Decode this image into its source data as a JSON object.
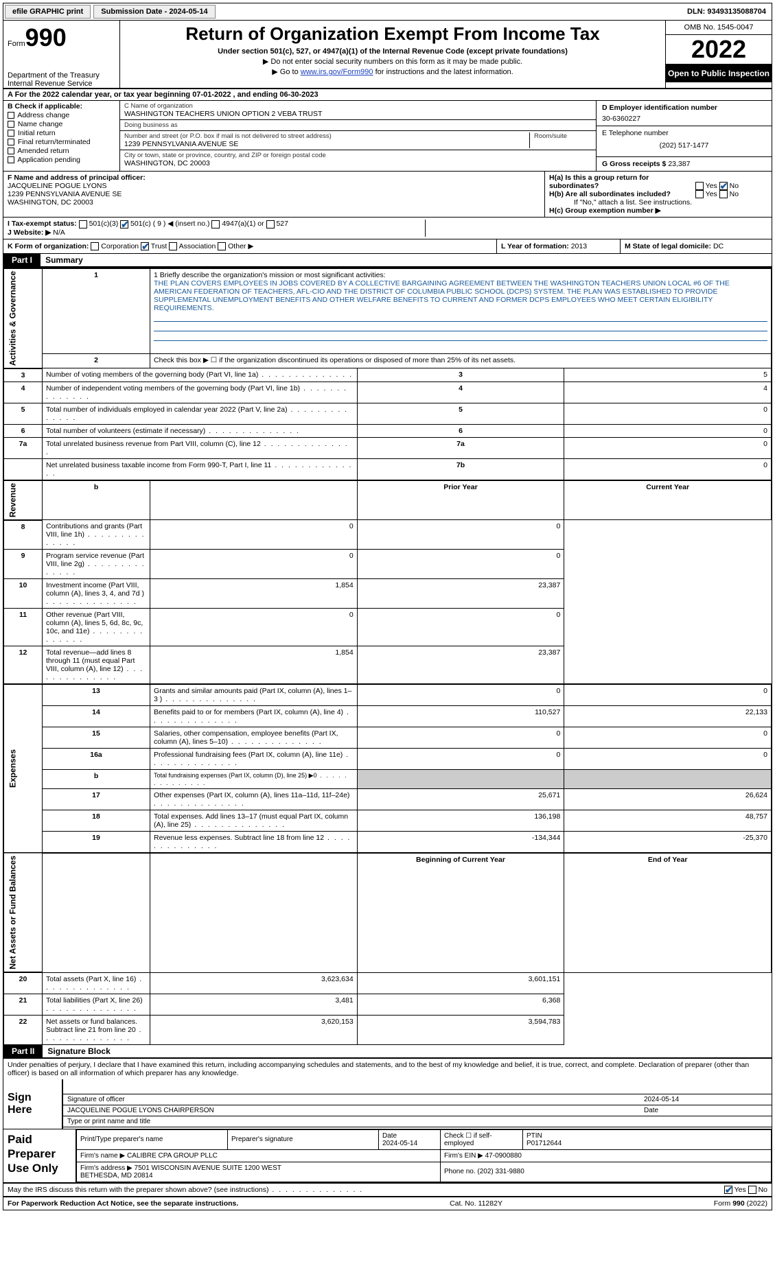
{
  "colors": {
    "accent": "#18599b",
    "link": "#1a3fbf",
    "black": "#000000",
    "shade": "#cccccc",
    "button_bg": "#eeeeee",
    "white": "#ffffff"
  },
  "topbar": {
    "efile": "efile GRAPHIC print",
    "submission_label": "Submission Date - 2024-05-14",
    "dln": "DLN: 93493135088704"
  },
  "header": {
    "form_label": "Form",
    "form_number": "990",
    "dept": "Department of the Treasury\nInternal Revenue Service",
    "title": "Return of Organization Exempt From Income Tax",
    "subtitle": "Under section 501(c), 527, or 4947(a)(1) of the Internal Revenue Code (except private foundations)",
    "note1": "▶ Do not enter social security numbers on this form as it may be made public.",
    "note2_pre": "▶ Go to ",
    "note2_link": "www.irs.gov/Form990",
    "note2_post": " for instructions and the latest information.",
    "omb": "OMB No. 1545-0047",
    "year": "2022",
    "open": "Open to Public Inspection"
  },
  "rowA": "A For the 2022 calendar year, or tax year beginning 07-01-2022    , and ending 06-30-2023",
  "colB": {
    "label": "B Check if applicable:",
    "opts": [
      "Address change",
      "Name change",
      "Initial return",
      "Final return/terminated",
      "Amended return",
      "Application pending"
    ]
  },
  "colC": {
    "name_label": "C Name of organization",
    "name": "WASHINGTON TEACHERS UNION OPTION 2 VEBA TRUST",
    "dba_label": "Doing business as",
    "dba": "",
    "street_label": "Number and street (or P.O. box if mail is not delivered to street address)",
    "room_label": "Room/suite",
    "street": "1239 PENNSYLVANIA AVENUE SE",
    "city_label": "City or town, state or province, country, and ZIP or foreign postal code",
    "city": "WASHINGTON, DC  20003"
  },
  "colD": {
    "ein_label": "D Employer identification number",
    "ein": "30-6360227",
    "phone_label": "E Telephone number",
    "phone": "(202) 517-1477",
    "gross_label": "G Gross receipts $",
    "gross": "23,387"
  },
  "F": {
    "label": "F  Name and address of principal officer:",
    "name": "JACQUELINE POGUE LYONS",
    "addr1": "1239 PENNSYLVANIA AVENUE SE",
    "addr2": "WASHINGTON, DC  20003"
  },
  "H": {
    "a_label": "H(a)  Is this a group return for subordinates?",
    "b_label": "H(b)  Are all subordinates included?",
    "b_note": "If \"No,\" attach a list. See instructions.",
    "c_label": "H(c)  Group exemption number ▶",
    "ha_yes": false,
    "ha_no": true,
    "hb_yes": false,
    "hb_no": false
  },
  "I": {
    "label": "I    Tax-exempt status:",
    "c3": "501(c)(3)",
    "c": "501(c) ( 9 ) ◀ (insert no.)",
    "a1": "4947(a)(1) or",
    "s527": "527",
    "checked_c": true
  },
  "J": {
    "label": "J   Website: ▶",
    "value": "N/A"
  },
  "K": {
    "label": "K Form of organization:",
    "opts": [
      "Corporation",
      "Trust",
      "Association",
      "Other ▶"
    ],
    "checked": "Trust"
  },
  "L": {
    "label": "L Year of formation:",
    "value": "2013"
  },
  "M": {
    "label": "M State of legal domicile:",
    "value": "DC"
  },
  "partI": {
    "hdr": "Part I",
    "title": "Summary"
  },
  "summary": {
    "q1_label": "1  Briefly describe the organization's mission or most significant activities:",
    "q1_text": "THE PLAN COVERS EMPLOYEES IN JOBS COVERED BY A COLLECTIVE BARGAINING AGREEMENT BETWEEN THE WASHINGTON TEACHERS UNION LOCAL #6 OF THE AMERICAN FEDERATION OF TEACHERS, AFL-CIO AND THE DISTRICT OF COLUMBIA PUBLIC SCHOOL (DCPS) SYSTEM. THE PLAN WAS ESTABLISHED TO PROVIDE SUPPLEMENTAL UNEMPLOYMENT BENEFITS AND OTHER WELFARE BENEFITS TO CURRENT AND FORMER DCPS EMPLOYEES WHO MEET CERTAIN ELIGIBILITY REQUIREMENTS.",
    "q2": "Check this box ▶ ☐  if the organization discontinued its operations or disposed of more than 25% of its net assets.",
    "rows_single": [
      {
        "n": "3",
        "label": "Number of voting members of the governing body (Part VI, line 1a)",
        "col": "3",
        "val": "5"
      },
      {
        "n": "4",
        "label": "Number of independent voting members of the governing body (Part VI, line 1b)",
        "col": "4",
        "val": "4"
      },
      {
        "n": "5",
        "label": "Total number of individuals employed in calendar year 2022 (Part V, line 2a)",
        "col": "5",
        "val": "0"
      },
      {
        "n": "6",
        "label": "Total number of volunteers (estimate if necessary)",
        "col": "6",
        "val": "0"
      },
      {
        "n": "7a",
        "label": "Total unrelated business revenue from Part VIII, column (C), line 12",
        "col": "7a",
        "val": "0"
      },
      {
        "n": "",
        "label": "Net unrelated business taxable income from Form 990-T, Part I, line 11",
        "col": "7b",
        "val": "0"
      }
    ],
    "hdr_prior": "Prior Year",
    "hdr_curr": "Current Year",
    "revenue": [
      {
        "n": "8",
        "label": "Contributions and grants (Part VIII, line 1h)",
        "p": "0",
        "c": "0"
      },
      {
        "n": "9",
        "label": "Program service revenue (Part VIII, line 2g)",
        "p": "0",
        "c": "0"
      },
      {
        "n": "10",
        "label": "Investment income (Part VIII, column (A), lines 3, 4, and 7d )",
        "p": "1,854",
        "c": "23,387"
      },
      {
        "n": "11",
        "label": "Other revenue (Part VIII, column (A), lines 5, 6d, 8c, 9c, 10c, and 11e)",
        "p": "0",
        "c": "0"
      },
      {
        "n": "12",
        "label": "Total revenue—add lines 8 through 11 (must equal Part VIII, column (A), line 12)",
        "p": "1,854",
        "c": "23,387"
      }
    ],
    "expenses": [
      {
        "n": "13",
        "label": "Grants and similar amounts paid (Part IX, column (A), lines 1–3 )",
        "p": "0",
        "c": "0"
      },
      {
        "n": "14",
        "label": "Benefits paid to or for members (Part IX, column (A), line 4)",
        "p": "110,527",
        "c": "22,133"
      },
      {
        "n": "15",
        "label": "Salaries, other compensation, employee benefits (Part IX, column (A), lines 5–10)",
        "p": "0",
        "c": "0"
      },
      {
        "n": "16a",
        "label": "Professional fundraising fees (Part IX, column (A), line 11e)",
        "p": "0",
        "c": "0"
      },
      {
        "n": "b",
        "label": "Total fundraising expenses (Part IX, column (D), line 25) ▶0",
        "p": "",
        "c": "",
        "shade": true,
        "small": true
      },
      {
        "n": "17",
        "label": "Other expenses (Part IX, column (A), lines 11a–11d, 11f–24e)",
        "p": "25,671",
        "c": "26,624"
      },
      {
        "n": "18",
        "label": "Total expenses. Add lines 13–17 (must equal Part IX, column (A), line 25)",
        "p": "136,198",
        "c": "48,757"
      },
      {
        "n": "19",
        "label": "Revenue less expenses. Subtract line 18 from line 12",
        "p": "-134,344",
        "c": "-25,370"
      }
    ],
    "hdr_boy": "Beginning of Current Year",
    "hdr_eoy": "End of Year",
    "net": [
      {
        "n": "20",
        "label": "Total assets (Part X, line 16)",
        "p": "3,623,634",
        "c": "3,601,151"
      },
      {
        "n": "21",
        "label": "Total liabilities (Part X, line 26)",
        "p": "3,481",
        "c": "6,368"
      },
      {
        "n": "22",
        "label": "Net assets or fund balances. Subtract line 21 from line 20",
        "p": "3,620,153",
        "c": "3,594,783"
      }
    ],
    "side_labels": {
      "ag": "Activities & Governance",
      "rev": "Revenue",
      "exp": "Expenses",
      "net": "Net Assets or Fund Balances"
    }
  },
  "partII": {
    "hdr": "Part II",
    "title": "Signature Block"
  },
  "sig": {
    "perjury": "Under penalties of perjury, I declare that I have examined this return, including accompanying schedules and statements, and to the best of my knowledge and belief, it is true, correct, and complete. Declaration of preparer (other than officer) is based on all information of which preparer has any knowledge.",
    "sign_here": "Sign Here",
    "sig_label": "Signature of officer",
    "date": "2024-05-14",
    "date_label": "Date",
    "name": "JACQUELINE POGUE LYONS  CHAIRPERSON",
    "name_label": "Type or print name and title"
  },
  "prep": {
    "label": "Paid Preparer Use Only",
    "r1": {
      "c1": "Print/Type preparer's name",
      "c2": "Preparer's signature",
      "c3l": "Date",
      "c3": "2024-05-14",
      "c4l": "Check ☐ if self-employed",
      "c5l": "PTIN",
      "c5": "P01712644"
    },
    "r2": {
      "c1": "Firm's name     ▶",
      "v1": "CALIBRE CPA GROUP PLLC",
      "c2": "Firm's EIN ▶",
      "v2": "47-0900880"
    },
    "r3": {
      "c1": "Firm's address ▶",
      "v1": "7501 WISCONSIN AVENUE SUITE 1200 WEST\nBETHESDA, MD  20814",
      "c2": "Phone no.",
      "v2": "(202) 331-9880"
    }
  },
  "discuss": {
    "q": "May the IRS discuss this return with the preparer shown above? (see instructions)",
    "yes": true,
    "no": false
  },
  "footer": {
    "l": "For Paperwork Reduction Act Notice, see the separate instructions.",
    "m": "Cat. No. 11282Y",
    "r_pre": "Form ",
    "r_b": "990",
    "r_post": " (2022)"
  }
}
